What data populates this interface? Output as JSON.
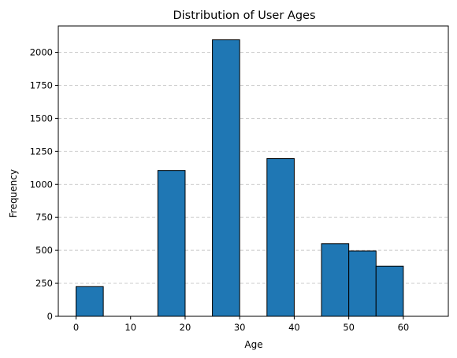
{
  "chart_data": {
    "type": "bar",
    "title": "Distribution of User Ages",
    "xlabel": "Age",
    "ylabel": "Frequency",
    "bins": [
      {
        "start": 0,
        "end": 5,
        "value": 225
      },
      {
        "start": 5,
        "end": 10,
        "value": 0
      },
      {
        "start": 10,
        "end": 15,
        "value": 0
      },
      {
        "start": 15,
        "end": 20,
        "value": 1105
      },
      {
        "start": 20,
        "end": 25,
        "value": 0
      },
      {
        "start": 25,
        "end": 30,
        "value": 2095
      },
      {
        "start": 30,
        "end": 35,
        "value": 0
      },
      {
        "start": 35,
        "end": 40,
        "value": 1195
      },
      {
        "start": 40,
        "end": 45,
        "value": 0
      },
      {
        "start": 45,
        "end": 50,
        "value": 550
      },
      {
        "start": 50,
        "end": 55,
        "value": 495
      },
      {
        "start": 55,
        "end": 60,
        "value": 380
      },
      {
        "start": 60,
        "end": 65,
        "value": 0
      }
    ],
    "xlim": [
      -3.25,
      68.25
    ],
    "ylim": [
      0,
      2200
    ],
    "xticks": [
      "0",
      "10",
      "20",
      "30",
      "40",
      "50",
      "60"
    ],
    "yticks": [
      "0",
      "250",
      "500",
      "750",
      "1000",
      "1250",
      "1500",
      "1750",
      "2000"
    ],
    "grid": "y-dashed",
    "colors": {
      "bar": "#1f77b4",
      "edge": "#000000",
      "grid": "#c8c8c8"
    }
  }
}
